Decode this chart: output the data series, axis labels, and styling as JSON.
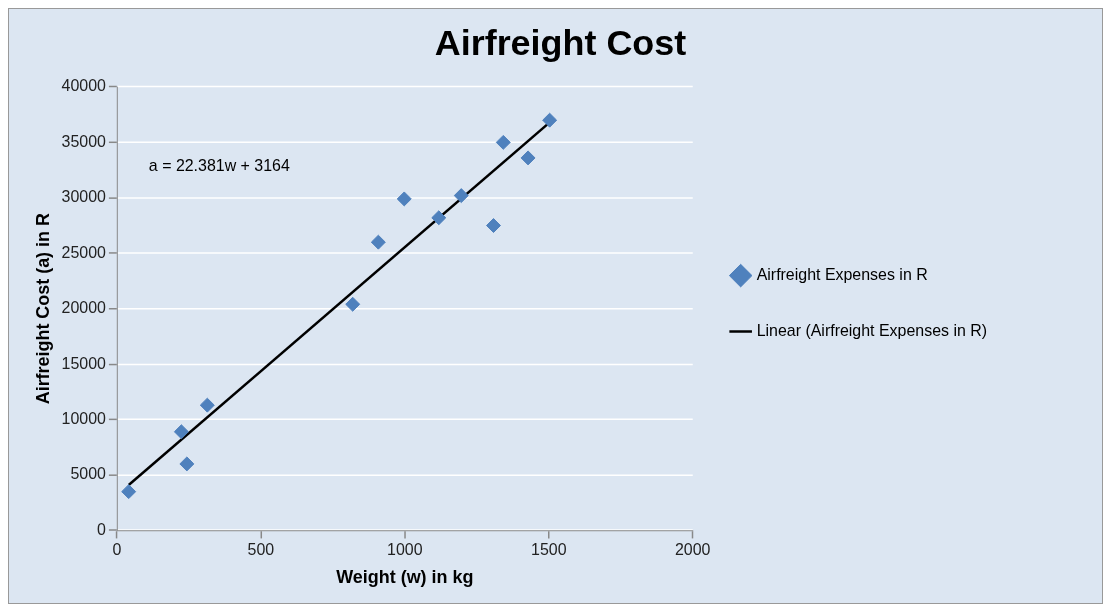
{
  "chart_data": {
    "type": "scatter",
    "title": "Airfreight Cost",
    "xlabel": "Weight (w) in kg",
    "ylabel": "Airfreight Cost (a) in R",
    "xlim": [
      0,
      2000
    ],
    "xticks": [
      0,
      500,
      1000,
      1500,
      2000
    ],
    "ylim": [
      0,
      40000
    ],
    "yticks": [
      0,
      5000,
      10000,
      15000,
      20000,
      25000,
      30000,
      35000,
      40000
    ],
    "grid": "y",
    "legend": "right",
    "annotations": [
      "a = 22.381w + 3164"
    ],
    "series": [
      {
        "name": "Airfreight Expenses in R",
        "marker": "diamond",
        "color": "#4f81bd",
        "x": [
          41,
          224,
          243,
          314,
          819,
          908,
          998,
          1118,
          1196,
          1308,
          1342,
          1428,
          1503
        ],
        "values": [
          3500,
          8900,
          6000,
          11300,
          20400,
          26000,
          29900,
          28200,
          30200,
          27500,
          35000,
          33600,
          37000
        ]
      },
      {
        "name": "Linear (Airfreight Expenses in R)",
        "type": "line",
        "color": "#000000",
        "marker": "none",
        "x": [
          41,
          1503
        ],
        "values": [
          4100,
          36800
        ]
      }
    ]
  }
}
